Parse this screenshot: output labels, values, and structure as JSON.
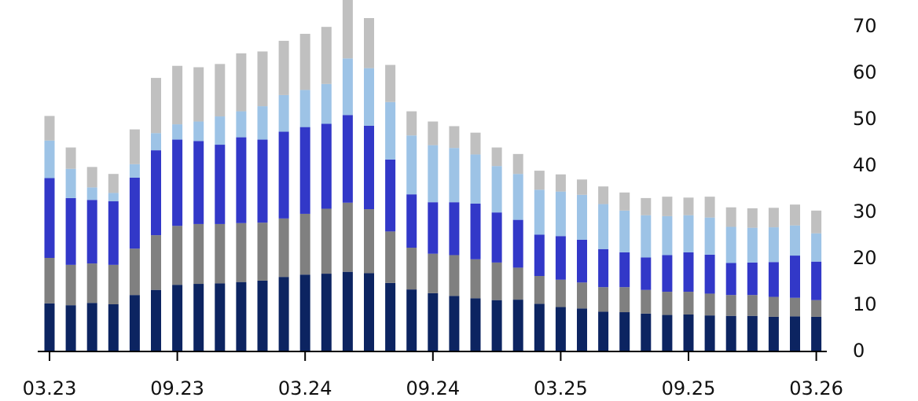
{
  "chart_data": {
    "type": "bar",
    "stacked": true,
    "x_tick_labels": [
      "03.23",
      "09.23",
      "03.24",
      "09.24",
      "03.25",
      "09.25",
      "03.26"
    ],
    "y_tick_labels": [
      "0",
      "10",
      "20",
      "30",
      "40",
      "50",
      "60",
      "70"
    ],
    "ylim": [
      0,
      75
    ],
    "y_axis_side": "right",
    "grid": false,
    "legend": "none",
    "categories": [
      "2023-03",
      "2023-04",
      "2023-05",
      "2023-06",
      "2023-07",
      "2023-08",
      "2023-09",
      "2023-10",
      "2023-11",
      "2023-12",
      "2024-01",
      "2024-02",
      "2024-03",
      "2024-04",
      "2024-05",
      "2024-06",
      "2024-07",
      "2024-08",
      "2024-09",
      "2024-10",
      "2024-11",
      "2024-12",
      "2025-01",
      "2025-02",
      "2025-03",
      "2025-04",
      "2025-05",
      "2025-06",
      "2025-07",
      "2025-08",
      "2025-09",
      "2025-10",
      "2025-11",
      "2025-12",
      "2026-01",
      "2026-02",
      "2026-03"
    ],
    "series": [
      {
        "color": "#0c2461",
        "values": [
          10.2,
          9.8,
          10.3,
          10.0,
          12.0,
          13.1,
          14.2,
          14.4,
          14.5,
          14.8,
          15.1,
          15.9,
          16.4,
          16.6,
          17.0,
          16.7,
          14.6,
          13.2,
          12.4,
          11.8,
          11.3,
          10.9,
          11.0,
          10.1,
          9.4,
          9.1,
          8.4,
          8.3,
          8.0,
          7.7,
          7.8,
          7.6,
          7.5,
          7.5,
          7.3,
          7.4,
          7.3
        ]
      },
      {
        "color": "#808080",
        "values": [
          9.8,
          8.7,
          8.5,
          8.5,
          10.0,
          11.8,
          12.7,
          12.9,
          12.8,
          12.7,
          12.5,
          12.6,
          13.1,
          14.0,
          14.9,
          13.8,
          11.1,
          9.0,
          8.5,
          8.8,
          8.4,
          8.1,
          6.9,
          6.0,
          5.9,
          5.6,
          5.3,
          5.4,
          5.1,
          5.0,
          4.9,
          4.7,
          4.5,
          4.5,
          4.3,
          4.0,
          3.6
        ]
      },
      {
        "color": "#3238c8",
        "values": [
          17.2,
          14.4,
          13.7,
          13.7,
          15.3,
          18.3,
          18.6,
          17.9,
          17.1,
          18.5,
          17.9,
          18.7,
          18.7,
          18.3,
          18.9,
          18.0,
          15.5,
          11.5,
          11.1,
          11.4,
          12.0,
          10.8,
          10.3,
          8.9,
          9.4,
          9.2,
          8.2,
          7.5,
          7.0,
          7.9,
          8.5,
          8.4,
          6.9,
          7.0,
          7.5,
          9.1,
          8.3
        ]
      },
      {
        "color": "#9dc3e6",
        "values": [
          8.1,
          6.3,
          2.7,
          1.8,
          2.9,
          3.7,
          3.3,
          4.2,
          6.1,
          5.6,
          7.2,
          7.9,
          8.0,
          8.6,
          12.2,
          12.4,
          12.4,
          12.7,
          12.3,
          11.7,
          10.6,
          10.0,
          9.9,
          9.7,
          9.6,
          9.7,
          9.7,
          9.0,
          9.1,
          8.4,
          8.0,
          8.0,
          7.8,
          7.5,
          7.5,
          6.5,
          6.1
        ]
      },
      {
        "color": "#c0c0c0",
        "values": [
          5.3,
          4.6,
          4.4,
          4.1,
          7.5,
          11.9,
          12.6,
          11.7,
          11.3,
          12.5,
          11.8,
          11.7,
          12.1,
          12.3,
          12.6,
          10.8,
          8.0,
          5.2,
          5.1,
          4.7,
          4.7,
          4.0,
          4.3,
          4.1,
          3.7,
          3.3,
          3.8,
          3.9,
          3.7,
          4.2,
          3.8,
          4.5,
          4.2,
          4.2,
          4.2,
          4.5,
          4.9
        ]
      }
    ]
  }
}
